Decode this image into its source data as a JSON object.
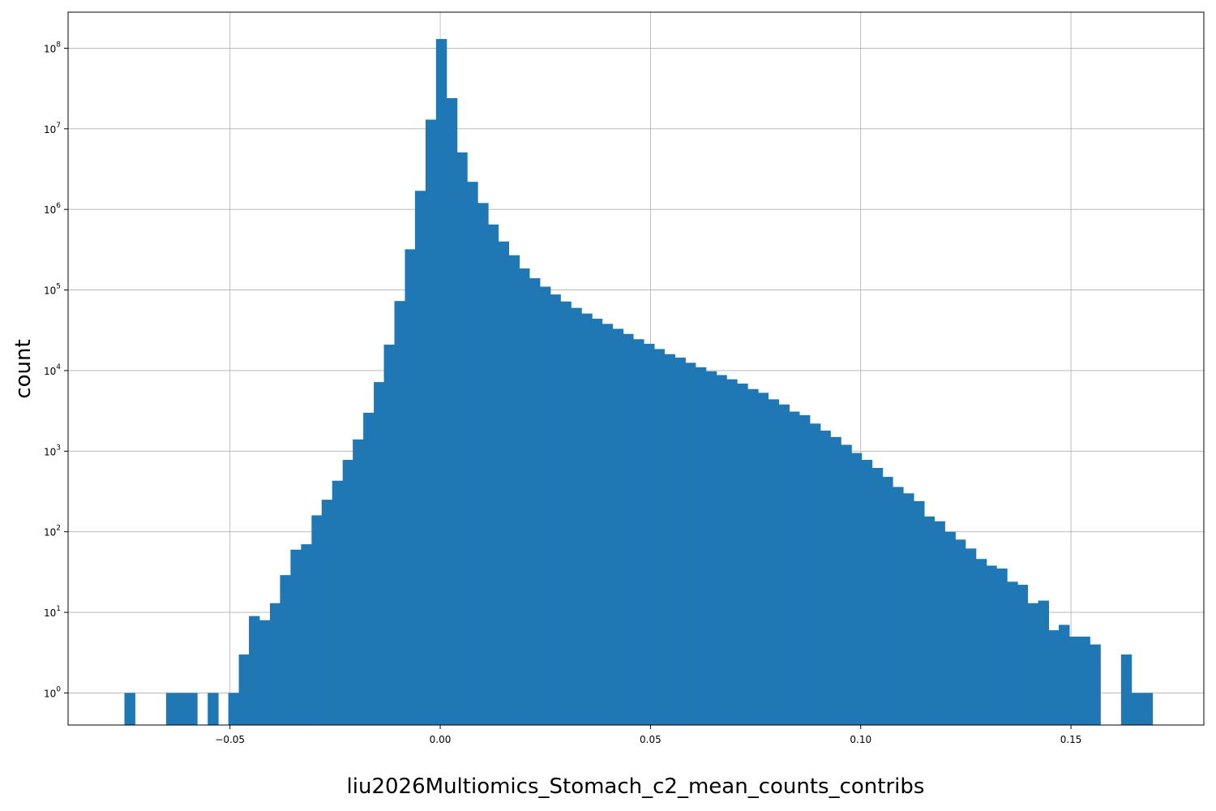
{
  "chart_data": {
    "type": "bar",
    "title": "",
    "xlabel": "liu2026Multiomics_Stomach_c2_mean_counts_contribs",
    "ylabel": "count",
    "yscale": "log",
    "xlim": [
      -0.0885,
      0.1816
    ],
    "ylim": [
      0.4,
      280000000
    ],
    "grid": true,
    "bar_color": "#1f77b4",
    "bin_width": 0.00247,
    "xticks": [
      -0.05,
      0.0,
      0.05,
      0.1,
      0.15
    ],
    "xtick_labels": [
      "−0.05",
      "0.00",
      "0.05",
      "0.10",
      "0.15"
    ],
    "yticks": [
      1,
      10,
      100,
      1000,
      10000,
      100000,
      1000000,
      10000000,
      100000000
    ],
    "ytick_labels": [
      {
        "base": "10",
        "exp": "0"
      },
      {
        "base": "10",
        "exp": "1"
      },
      {
        "base": "10",
        "exp": "2"
      },
      {
        "base": "10",
        "exp": "3"
      },
      {
        "base": "10",
        "exp": "4"
      },
      {
        "base": "10",
        "exp": "5"
      },
      {
        "base": "10",
        "exp": "6"
      },
      {
        "base": "10",
        "exp": "7"
      },
      {
        "base": "10",
        "exp": "8"
      }
    ],
    "bins_start": [
      -0.0751,
      -0.0652,
      -0.0628,
      -0.0603,
      -0.0553,
      -0.0504,
      -0.0479,
      -0.0455,
      -0.043,
      -0.0405,
      -0.0381,
      -0.0356,
      -0.0331,
      -0.0306,
      -0.0282,
      -0.0257,
      -0.0232,
      -0.0208,
      -0.0183,
      -0.0158,
      -0.0134,
      -0.0109,
      -0.0084,
      -0.006,
      -0.0035,
      -0.001,
      0.0015,
      0.0039,
      0.0064,
      0.0089,
      0.0113,
      0.0138,
      0.0163,
      0.0187,
      0.0212,
      0.0237,
      0.0261,
      0.0286,
      0.0311,
      0.0336,
      0.036,
      0.0385,
      0.041,
      0.0434,
      0.0459,
      0.0484,
      0.0508,
      0.0533,
      0.0558,
      0.0582,
      0.0607,
      0.0632,
      0.0656,
      0.0681,
      0.0706,
      0.0731,
      0.0755,
      0.078,
      0.0805,
      0.0829,
      0.0854,
      0.0879,
      0.0903,
      0.0928,
      0.0953,
      0.0977,
      0.1002,
      0.1027,
      0.1051,
      0.1076,
      0.1101,
      0.1126,
      0.115,
      0.1175,
      0.12,
      0.1224,
      0.1249,
      0.1274,
      0.1298,
      0.1323,
      0.1348,
      0.1372,
      0.1397,
      0.1422,
      0.1446,
      0.1471,
      0.1496,
      0.152,
      0.1545,
      0.1619,
      0.1644,
      0.1669
    ],
    "values": [
      1,
      1,
      1,
      1,
      1,
      1,
      3,
      9,
      8,
      13,
      29,
      60,
      70,
      160,
      250,
      430,
      780,
      1400,
      3000,
      7200,
      21000,
      73000,
      320000,
      1700000,
      13000000,
      130000000,
      24000000,
      5100000,
      2200000,
      1200000,
      650000,
      400000,
      270000,
      185000,
      140000,
      110000,
      88000,
      72000,
      60000,
      51000,
      44000,
      38000,
      33000,
      28500,
      24500,
      21500,
      18500,
      16000,
      14500,
      12500,
      11000,
      9800,
      8800,
      7800,
      6900,
      5900,
      5300,
      4400,
      3800,
      3100,
      2800,
      2200,
      1800,
      1500,
      1200,
      950,
      780,
      620,
      480,
      360,
      300,
      240,
      155,
      135,
      100,
      80,
      62,
      46,
      38,
      35,
      24,
      22,
      13,
      14,
      6,
      7,
      5,
      5,
      4,
      3,
      1,
      1,
      1
    ]
  }
}
